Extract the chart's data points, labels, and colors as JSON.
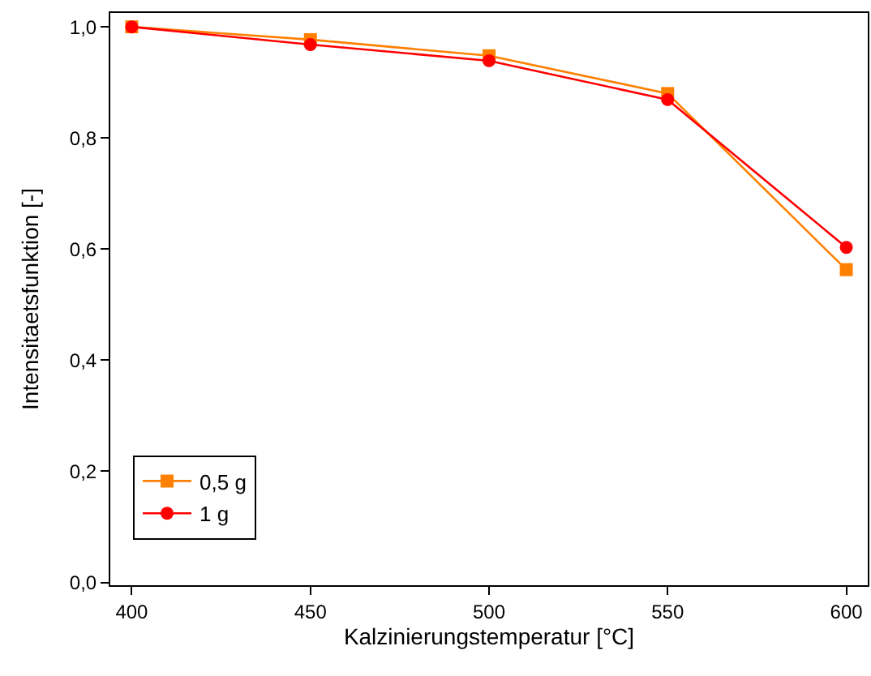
{
  "chart_data": {
    "type": "line",
    "xlabel": "Kalzinierungstemperatur [°C]",
    "ylabel": "Intensitaetsfunktion [-]",
    "x": [
      400,
      450,
      500,
      550,
      600
    ],
    "series": [
      {
        "name": "0,5 g",
        "color": "#ff8000",
        "marker": "square",
        "values": [
          1.0,
          0.977,
          0.948,
          0.88,
          0.563
        ]
      },
      {
        "name": "1 g",
        "color": "#ff0000",
        "marker": "circle",
        "values": [
          1.0,
          0.968,
          0.939,
          0.869,
          0.603
        ]
      }
    ],
    "xlim": [
      394,
      606
    ],
    "xticks": [
      400,
      450,
      500,
      550,
      600
    ],
    "ylim": [
      -0.005,
      1.025
    ],
    "yticks": [
      {
        "value": 0,
        "label": "0,0"
      },
      {
        "value": 0.2,
        "label": "0,2"
      },
      {
        "value": 0.4,
        "label": "0,4"
      },
      {
        "value": 0.6,
        "label": "0,6"
      },
      {
        "value": 0.8,
        "label": "0,8"
      },
      {
        "value": 1.0,
        "label": "1,0"
      }
    ],
    "legend": "bottom left",
    "line_style": "solid"
  }
}
